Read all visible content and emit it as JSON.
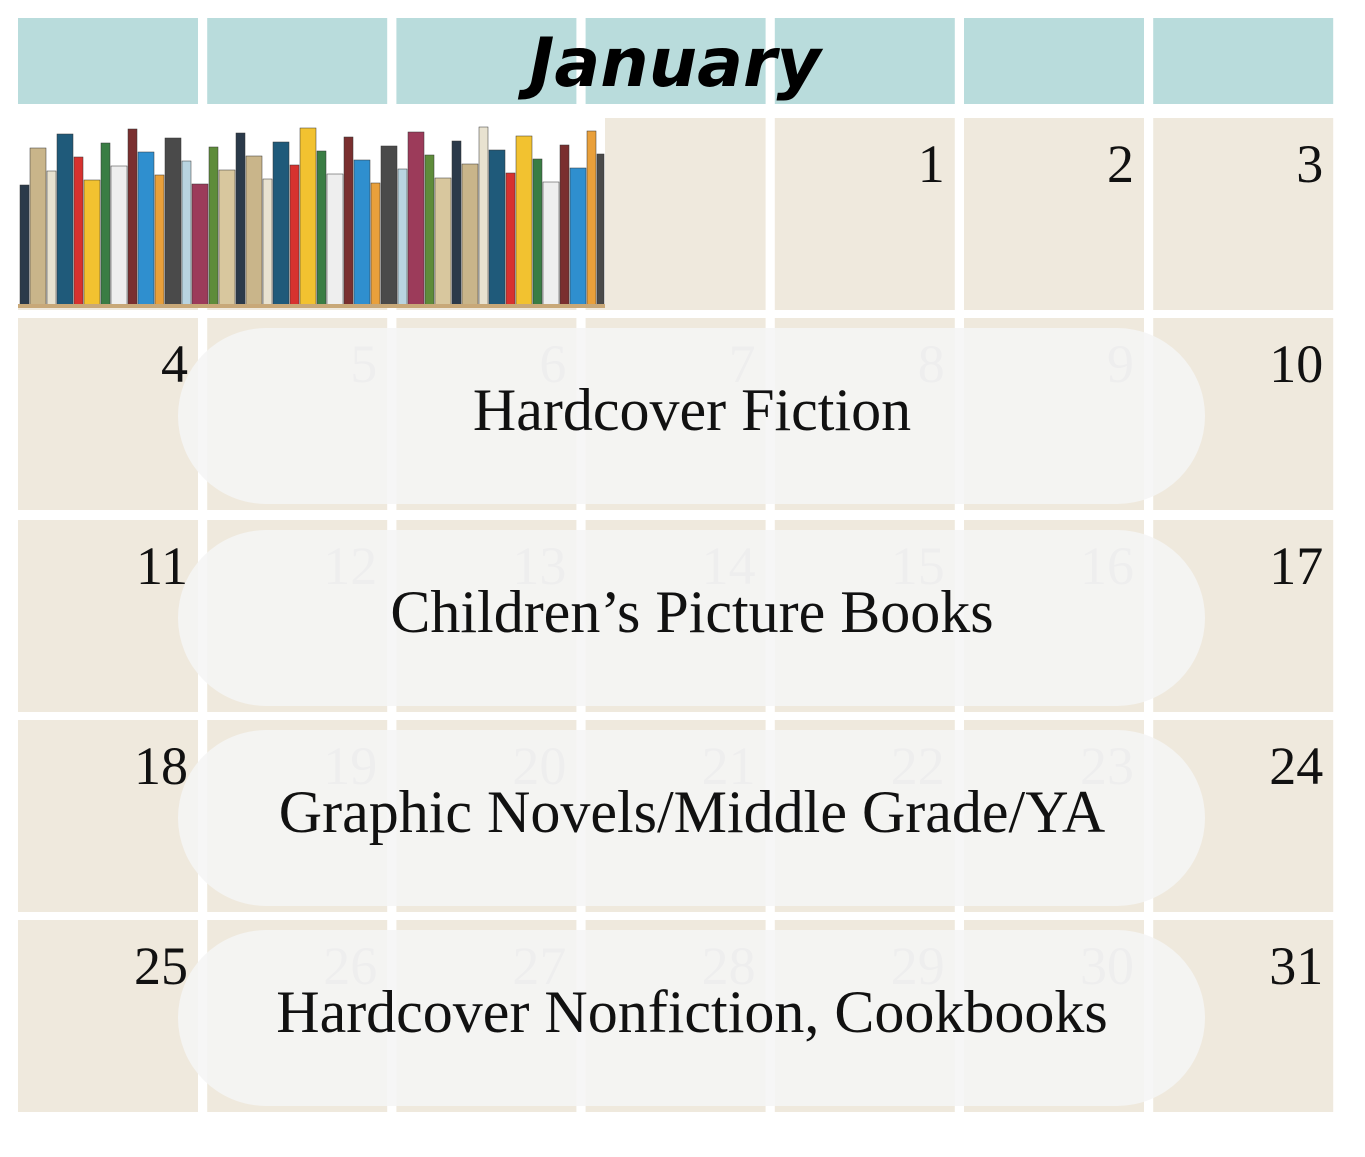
{
  "header": {
    "title": "January"
  },
  "weeks": [
    [
      1,
      2,
      3
    ],
    [
      4,
      5,
      6,
      7,
      8,
      9,
      10
    ],
    [
      11,
      12,
      13,
      14,
      15,
      16,
      17
    ],
    [
      18,
      19,
      20,
      21,
      22,
      23,
      24
    ],
    [
      25,
      26,
      27,
      28,
      29,
      30,
      31
    ]
  ],
  "events": [
    "Hardcover Fiction",
    "Children’s Picture Books",
    "Graphic Novels/Middle Grade/YA",
    "Hardcover Nonfiction, Cookbooks"
  ]
}
